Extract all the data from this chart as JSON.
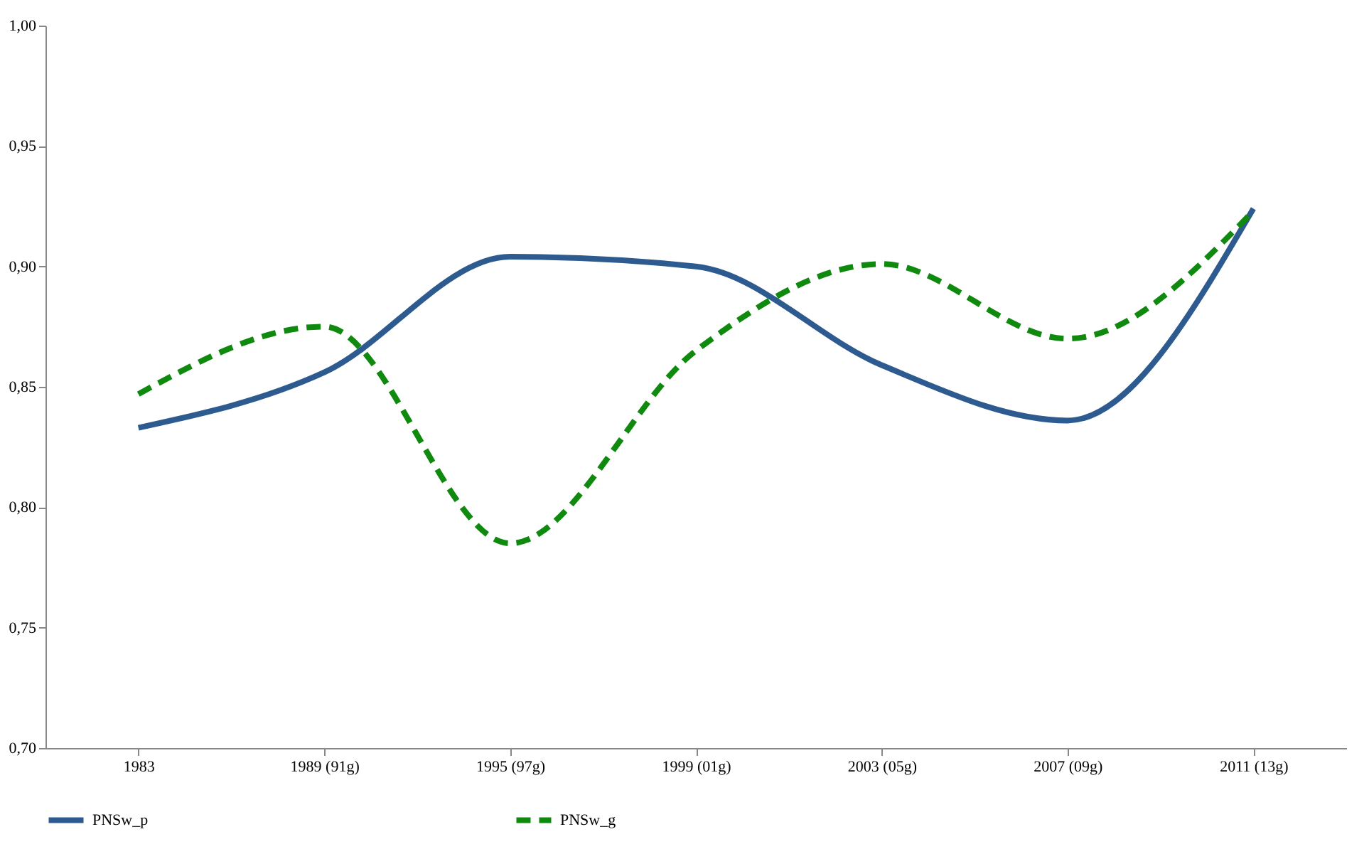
{
  "chart_data": {
    "type": "line",
    "categories": [
      "1983",
      "1989 (91g)",
      "1995 (97g)",
      "1999 (01g)",
      "2003 (05g)",
      "2007 (09g)",
      "2011 (13g)"
    ],
    "series": [
      {
        "name": "PNSw_p",
        "color": "#2e5b8f",
        "line_style": "solid",
        "values": [
          0.833,
          0.856,
          0.904,
          0.9,
          0.859,
          0.836,
          0.924
        ]
      },
      {
        "name": "PNSw_g",
        "color": "#0f8a0f",
        "line_style": "dashed",
        "values": [
          0.847,
          0.875,
          0.785,
          0.865,
          0.901,
          0.87,
          0.923
        ]
      }
    ],
    "ylim": [
      0.7,
      1.0
    ],
    "yticks": [
      {
        "value": 0.7,
        "label": "0,70"
      },
      {
        "value": 0.75,
        "label": "0,75"
      },
      {
        "value": 0.8,
        "label": "0,80"
      },
      {
        "value": 0.85,
        "label": "0,85"
      },
      {
        "value": 0.9,
        "label": "0,90"
      },
      {
        "value": 0.95,
        "label": "0,95"
      },
      {
        "value": 1.0,
        "label": "1,00"
      }
    ],
    "grid": false,
    "legend": "bottom",
    "marker": "none"
  }
}
